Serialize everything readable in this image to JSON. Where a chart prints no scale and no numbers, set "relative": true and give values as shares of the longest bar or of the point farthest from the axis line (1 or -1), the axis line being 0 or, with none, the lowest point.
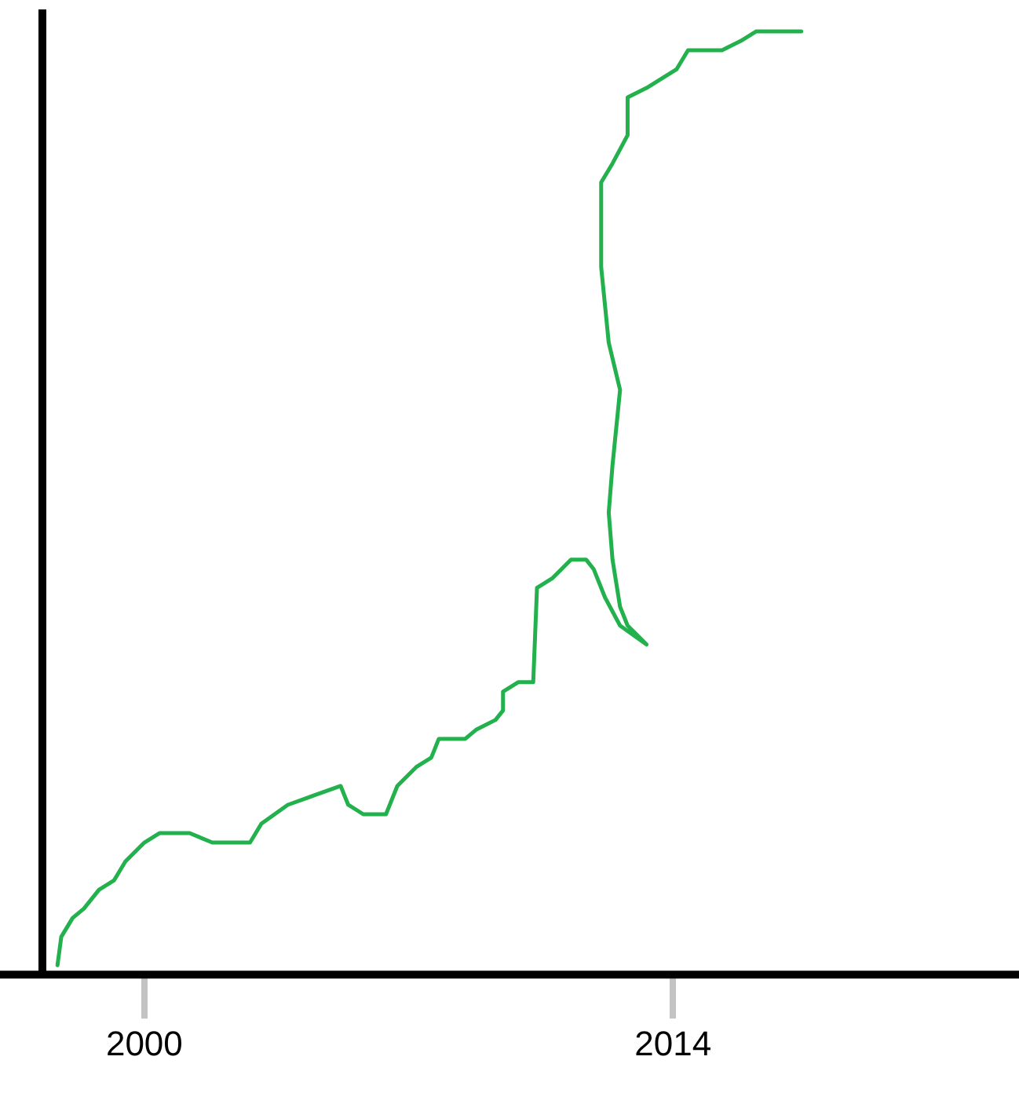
{
  "chart_data": {
    "type": "line",
    "relative": true,
    "xlim": [
      1997.3,
      2023
    ],
    "xticks": [
      2000,
      2014
    ],
    "grid": false,
    "legend": false,
    "marker": "none",
    "line_style": "solid",
    "series": [
      {
        "color": "#22b14c",
        "x": [
          1997.7,
          1997.8,
          1998.1,
          1998.4,
          1998.8,
          1999.2,
          1999.5,
          2000.0,
          2000.4,
          2000.8,
          2001.2,
          2001.8,
          2002.3,
          2002.8,
          2003.1,
          2003.8,
          2004.5,
          2005.2,
          2005.4,
          2005.8,
          2006.2,
          2006.4,
          2006.7,
          2007.2,
          2007.6,
          2007.8,
          2008.5,
          2008.8,
          2009.3,
          2009.5,
          2009.5,
          2009.9,
          2010.3,
          2010.4,
          2010.8,
          2011.3,
          2011.7,
          2011.9,
          2012.2,
          2012.6,
          2013.3,
          2012.8,
          2012.6,
          2012.4,
          2012.3,
          2012.4,
          2012.6,
          2012.3,
          2012.2,
          2012.1,
          2012.1,
          2012.4,
          2012.8,
          2012.8,
          2013.3,
          2013.7,
          2014.1,
          2014.4,
          2015.3,
          2015.8,
          2016.2,
          2017.4
        ],
        "values": [
          0.01,
          0.04,
          0.06,
          0.07,
          0.09,
          0.1,
          0.12,
          0.14,
          0.15,
          0.15,
          0.15,
          0.14,
          0.14,
          0.14,
          0.16,
          0.18,
          0.19,
          0.2,
          0.18,
          0.17,
          0.17,
          0.17,
          0.2,
          0.22,
          0.23,
          0.25,
          0.25,
          0.26,
          0.27,
          0.28,
          0.3,
          0.31,
          0.31,
          0.41,
          0.42,
          0.44,
          0.44,
          0.43,
          0.4,
          0.37,
          0.35,
          0.37,
          0.39,
          0.44,
          0.49,
          0.54,
          0.62,
          0.67,
          0.71,
          0.75,
          0.84,
          0.86,
          0.89,
          0.93,
          0.94,
          0.95,
          0.96,
          0.98,
          0.98,
          0.99,
          1,
          1
        ]
      }
    ]
  }
}
